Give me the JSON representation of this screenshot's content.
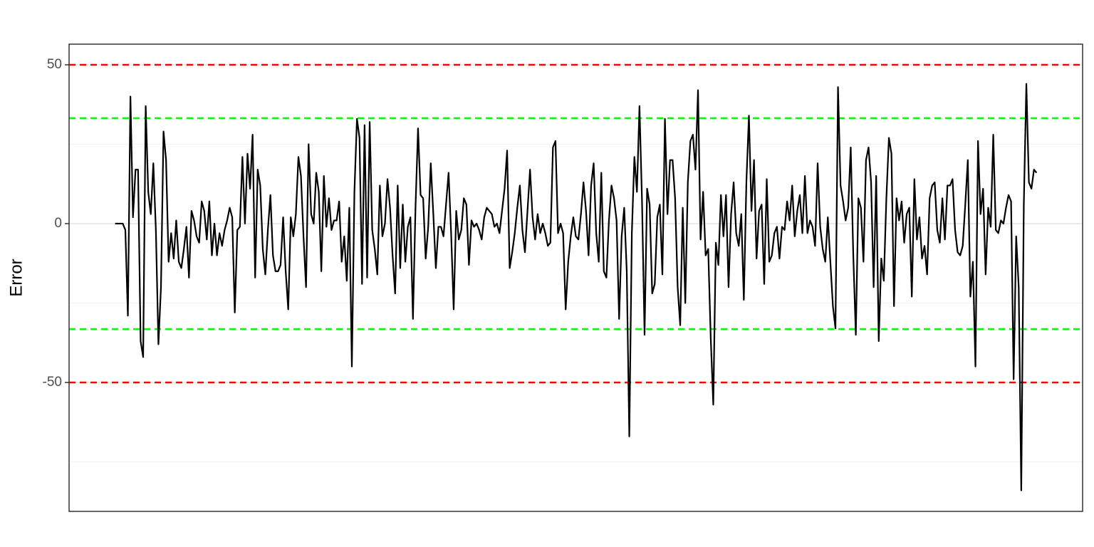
{
  "chart_data": {
    "type": "line",
    "y_label": "Error",
    "series": [
      {
        "color": "#000000",
        "values": [
          0,
          0,
          0,
          0,
          -2,
          -29,
          40,
          2,
          17,
          17,
          -37,
          -42,
          37,
          10,
          3,
          19,
          -2,
          -38,
          -20,
          29,
          20,
          -12,
          -3,
          -11,
          1,
          -12,
          -14,
          -8,
          -1,
          -17,
          4,
          1,
          -4,
          -6,
          7,
          4,
          -5,
          7,
          -10,
          0,
          -10,
          -3,
          -7,
          -2,
          1,
          5,
          2,
          -28,
          -2,
          -1,
          21,
          0,
          22,
          11,
          28,
          -17,
          17,
          12,
          -8,
          -16,
          -2,
          9,
          -10,
          -15,
          -15,
          -13,
          2,
          -15,
          -27,
          2,
          -4,
          3,
          21,
          15,
          -4,
          -20,
          25,
          3,
          0,
          16,
          10,
          -15,
          15,
          -1,
          8,
          -2,
          1,
          1,
          7,
          -12,
          -4,
          -18,
          5,
          -45,
          10,
          33,
          27,
          -19,
          31,
          -17,
          32,
          -2,
          -8,
          -16,
          12,
          -4,
          0,
          14,
          5,
          -10,
          -22,
          12,
          -14,
          6,
          -12,
          -1,
          2,
          -30,
          5,
          30,
          9,
          8,
          -11,
          -1,
          19,
          3,
          -14,
          -1,
          -1,
          -4,
          6,
          16,
          -3,
          -27,
          4,
          -5,
          -2,
          8,
          6,
          -13,
          1,
          -1,
          0,
          -2,
          -5,
          2,
          5,
          4,
          3,
          -1,
          0,
          -3,
          4,
          11,
          23,
          -14,
          -9,
          -3,
          5,
          12,
          -2,
          -9,
          4,
          17,
          2,
          -5,
          3,
          -3,
          0,
          -3,
          -7,
          -6,
          24,
          26,
          -3,
          0,
          -3,
          -27,
          -12,
          -4,
          2,
          -4,
          -5,
          3,
          13,
          4,
          -10,
          12,
          19,
          -3,
          -12,
          16,
          -15,
          -17,
          1,
          12,
          8,
          1,
          -30,
          -4,
          5,
          -15,
          -67,
          -3,
          21,
          10,
          37,
          7,
          -35,
          11,
          6,
          -22,
          -19,
          2,
          6,
          -16,
          33,
          3,
          20,
          20,
          8,
          -20,
          -32,
          5,
          -25,
          13,
          26,
          28,
          17,
          42,
          -5,
          10,
          -10,
          -8,
          -36,
          -57,
          -6,
          -13,
          9,
          -4,
          9,
          -20,
          3,
          13,
          -3,
          -7,
          3,
          -24,
          13,
          34,
          4,
          20,
          -11,
          4,
          6,
          -19,
          14,
          -12,
          -10,
          -3,
          -1,
          -11,
          -1,
          -2,
          7,
          1,
          12,
          -4,
          4,
          9,
          -3,
          15,
          -3,
          1,
          -1,
          -7,
          19,
          -1,
          -8,
          -12,
          2,
          -12,
          -26,
          -33,
          43,
          12,
          7,
          1,
          5,
          24,
          -10,
          -35,
          8,
          5,
          -12,
          20,
          24,
          13,
          -20,
          15,
          -37,
          -11,
          -18,
          8,
          27,
          22,
          -26,
          8,
          1,
          7,
          -6,
          3,
          5,
          -23,
          14,
          -5,
          2,
          -11,
          -7,
          -16,
          8,
          12,
          13,
          -2,
          -6,
          8,
          -5,
          12,
          12,
          14,
          -2,
          -9,
          -10,
          -7,
          6,
          20,
          -23,
          -12,
          -45,
          26,
          3,
          11,
          -16,
          5,
          -1,
          28,
          -2,
          -3,
          1,
          0,
          5,
          9,
          7,
          -49,
          -4,
          -20,
          -84,
          6,
          44,
          13,
          11,
          17,
          16
        ]
      }
    ],
    "ylim": [
      -90.6,
      56.5
    ],
    "yticks": [
      -50,
      0,
      50
    ],
    "minor_yticks": [
      -75,
      -25,
      25
    ],
    "grid": true,
    "hlines": [
      {
        "value": 50,
        "color": "#ff0000"
      },
      {
        "value": 33.2,
        "color": "#00ff00"
      },
      {
        "value": -33.2,
        "color": "#00ff00"
      },
      {
        "value": -50,
        "color": "#ff0000"
      }
    ]
  }
}
